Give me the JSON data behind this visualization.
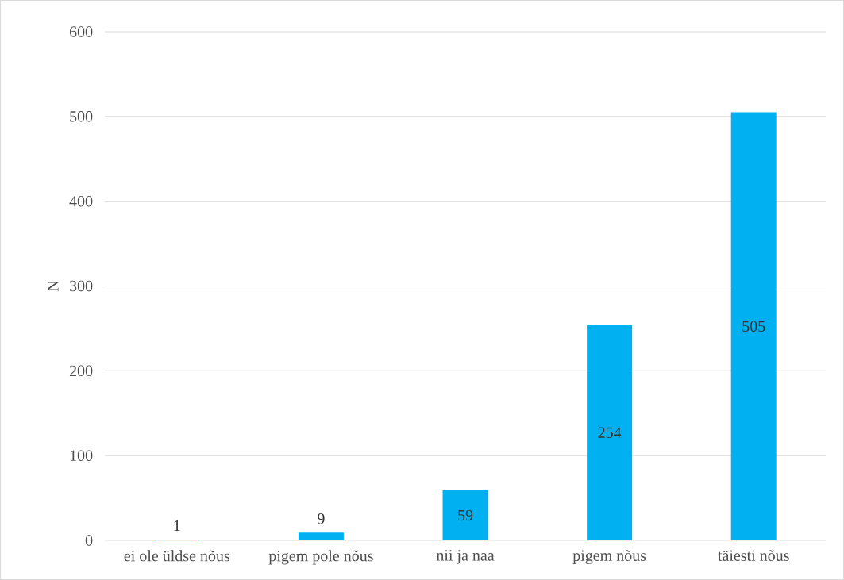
{
  "chart_data": {
    "type": "bar",
    "ylabel": "N",
    "categories": [
      "ei ole üldse nõus",
      "pigem pole nõus",
      "nii ja naa",
      "pigem nõus",
      "täiesti nõus"
    ],
    "values": [
      1,
      9,
      59,
      254,
      505
    ],
    "color": "#00b0f0",
    "ylim": [
      0,
      600
    ],
    "yticks": [
      0,
      100,
      200,
      300,
      400,
      500,
      600
    ],
    "grid": "y",
    "data_labels": true
  }
}
